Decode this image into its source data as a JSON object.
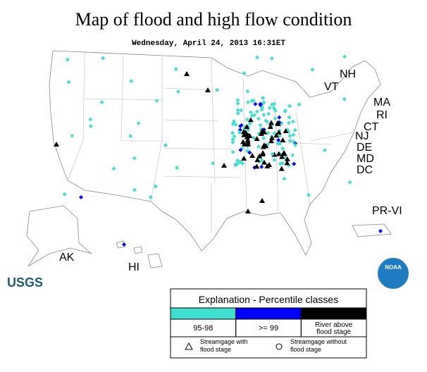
{
  "header": {
    "title": "Map of flood and high flow condition",
    "timestamp": "Wednesday, April 24, 2013 16:31ET"
  },
  "map": {
    "labels": [
      "NH",
      "VT",
      "MA",
      "RI",
      "CT",
      "NJ",
      "DE",
      "MD",
      "DC",
      "PR-VI",
      "AK",
      "HI"
    ]
  },
  "logos": {
    "usgs": "USGS",
    "noaa": "NOAA"
  },
  "legend": {
    "title": "Explanation - Percentile classes",
    "classes": [
      {
        "lines": [
          "95-98"
        ],
        "color": "#40e0d0"
      },
      {
        "lines": [
          ">= 99"
        ],
        "color": "#0000ff"
      },
      {
        "lines": [
          "River above",
          "flood stage"
        ],
        "color": "#000000"
      }
    ],
    "symbols": [
      {
        "lines": [
          "Streamgage with",
          "flood stage"
        ],
        "shape": "triangle"
      },
      {
        "lines": [
          "Streamgage without",
          "flood stage"
        ],
        "shape": "circle"
      }
    ]
  }
}
